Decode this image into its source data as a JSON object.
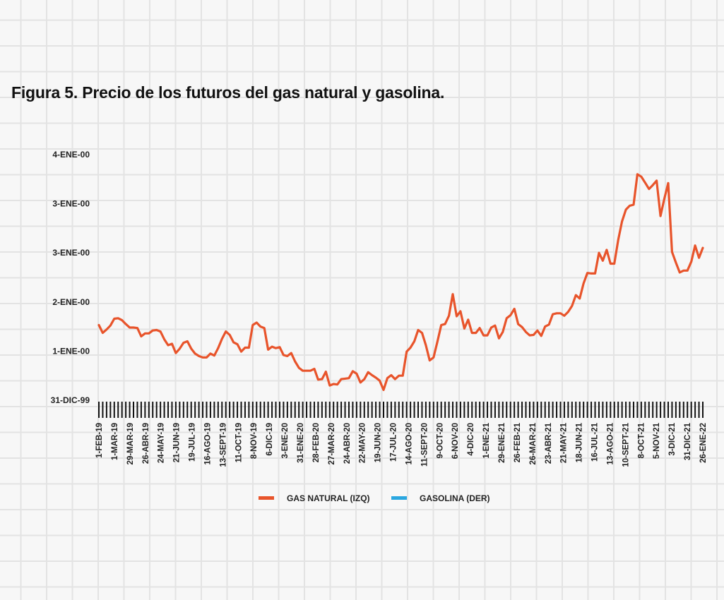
{
  "title": "Figura 5. Precio de los futuros del gas natural y gasolina.",
  "colors": {
    "gas": "#e8542b",
    "gasolina": "#2aa7e0",
    "axis": "#111111"
  },
  "chart_data": {
    "type": "line",
    "title": "Figura 5. Precio de los futuros del gas natural y gasolina.",
    "ylim": [
      0,
      5
    ],
    "yticks": [
      "31-DIC-99",
      "1-ENE-00",
      "2-ENE-00",
      "3-ENE-00",
      "3-ENE-00",
      "4-ENE-00"
    ],
    "xtick_labels": [
      "1-FEB-19",
      "1-MAR-19",
      "29-MAR-19",
      "26-ABR-19",
      "24-MAY-19",
      "21-JUN-19",
      "19-JUL-19",
      "16-AGO-19",
      "13-SEPT-19",
      "11-OCT-19",
      "8-NOV-19",
      "6-DIC-19",
      "3-ENE-20",
      "31-ENE-20",
      "28-FEB-20",
      "27-MAR-20",
      "24-ABR-20",
      "22-MAY-20",
      "19-JUN-20",
      "17-JUL-20",
      "14-AGO-20",
      "11-SEPT-20",
      "9-OCT-20",
      "6-NOV-20",
      "4-DIC-20",
      "1-ENE-21",
      "29-ENE-21",
      "26-FEB-21",
      "26-MAR-21",
      "23-ABR-21",
      "21-MAY-21",
      "18-JUN-21",
      "16-JUL-21",
      "13-AGO-21",
      "10-SEPT-21",
      "8-OCT-21",
      "5-NOV-21",
      "3-DIC-21",
      "31-DIC-21",
      "26-ENE-22"
    ],
    "grid": true,
    "legend": "bottom-center",
    "series": [
      {
        "name": "GAS NATURAL (IZQ)",
        "axis": "left",
        "values": [
          1.53,
          1.37,
          1.44,
          1.52,
          1.66,
          1.67,
          1.63,
          1.55,
          1.48,
          1.48,
          1.47,
          1.3,
          1.36,
          1.36,
          1.42,
          1.43,
          1.4,
          1.24,
          1.12,
          1.15,
          0.96,
          1.05,
          1.17,
          1.2,
          1.05,
          0.95,
          0.9,
          0.87,
          0.87,
          0.95,
          0.91,
          1.06,
          1.25,
          1.4,
          1.33,
          1.18,
          1.14,
          0.99,
          1.07,
          1.07,
          1.53,
          1.58,
          1.5,
          1.47,
          1.03,
          1.09,
          1.06,
          1.08,
          0.92,
          0.9,
          0.96,
          0.79,
          0.66,
          0.6,
          0.6,
          0.6,
          0.64,
          0.42,
          0.43,
          0.58,
          0.3,
          0.33,
          0.32,
          0.43,
          0.44,
          0.45,
          0.59,
          0.54,
          0.36,
          0.43,
          0.57,
          0.51,
          0.46,
          0.4,
          0.21,
          0.45,
          0.51,
          0.43,
          0.5,
          0.5,
          0.99,
          1.07,
          1.2,
          1.43,
          1.37,
          1.12,
          0.81,
          0.87,
          1.19,
          1.53,
          1.55,
          1.72,
          2.16,
          1.71,
          1.81,
          1.46,
          1.64,
          1.37,
          1.37,
          1.47,
          1.32,
          1.32,
          1.48,
          1.52,
          1.26,
          1.39,
          1.67,
          1.73,
          1.86,
          1.55,
          1.49,
          1.39,
          1.32,
          1.33,
          1.42,
          1.31,
          1.5,
          1.54,
          1.75,
          1.77,
          1.77,
          1.72,
          1.8,
          1.92,
          2.14,
          2.07,
          2.38,
          2.59,
          2.58,
          2.58,
          3.0,
          2.84,
          3.06,
          2.78,
          2.78,
          3.26,
          3.64,
          3.88,
          3.96,
          3.98,
          4.6,
          4.55,
          4.43,
          4.3,
          4.38,
          4.47,
          3.75,
          4.1,
          4.42,
          3.02,
          2.8,
          2.6,
          2.64,
          2.64,
          2.82,
          3.15,
          2.9,
          3.1
        ]
      },
      {
        "name": "GASOLINA (DER)",
        "axis": "right",
        "values": []
      }
    ]
  }
}
